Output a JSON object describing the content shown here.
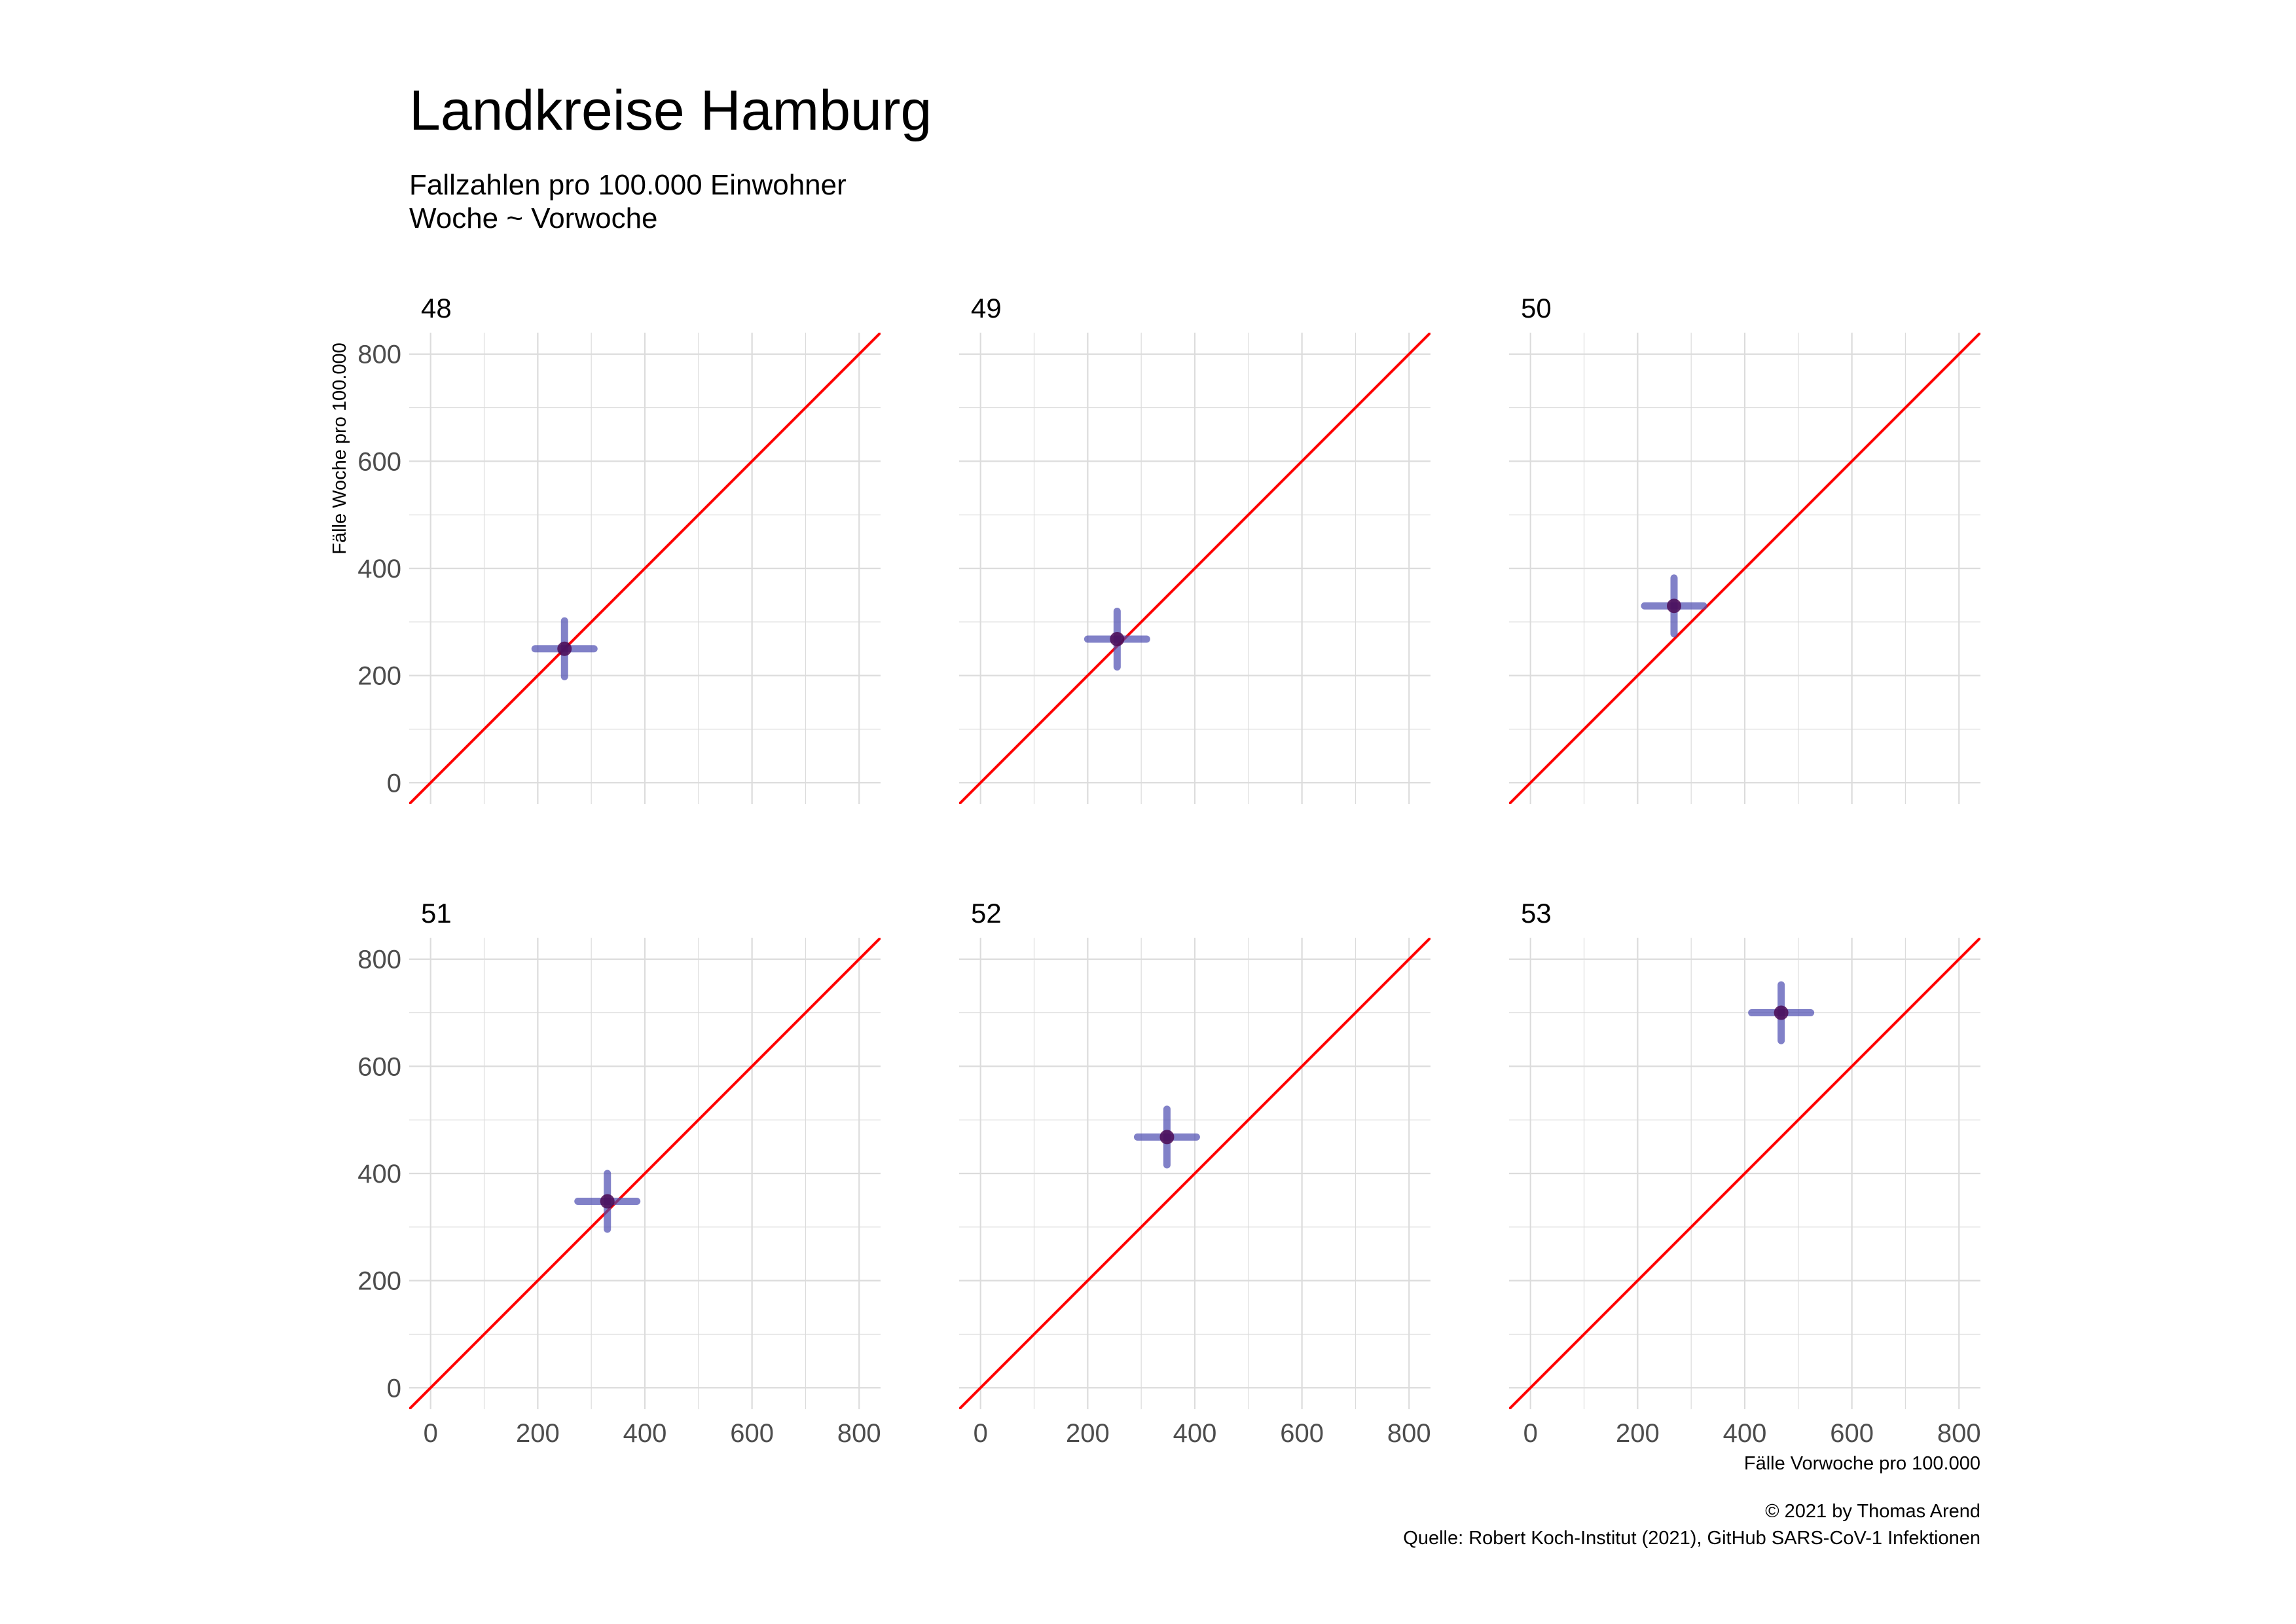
{
  "colors": {
    "background": "#ffffff",
    "grid": "#dcdcdc",
    "diagonal": "#ff0000",
    "crosshair": "#4b4bb0",
    "point": "#4b0a55",
    "text": "#000000",
    "tick_text": "#4d4d4d"
  },
  "chart_data": {
    "type": "scatter",
    "title": "Landkreise Hamburg",
    "subtitle": [
      "Fallzahlen pro 100.000 Einwohner",
      "Woche ~ Vorwoche"
    ],
    "xlabel": "Fälle Vorwoche pro 100.000",
    "ylabel": "Fälle Woche pro 100.000",
    "caption": [
      "© 2021 by Thomas Arend",
      "Quelle: Robert Koch-Institut (2021), GitHub SARS-CoV-1 Infektionen"
    ],
    "xlim": [
      -40,
      840
    ],
    "ylim": [
      -40,
      840
    ],
    "xticks": [
      0,
      200,
      400,
      600,
      800
    ],
    "yticks": [
      0,
      200,
      400,
      600,
      800
    ],
    "grid": true,
    "reference_line": "y = x",
    "facets": [
      {
        "label": "48",
        "x": 250,
        "y": 250,
        "x_error": 55,
        "y_error": 52
      },
      {
        "label": "49",
        "x": 255,
        "y": 268,
        "x_error": 55,
        "y_error": 52
      },
      {
        "label": "50",
        "x": 268,
        "y": 330,
        "x_error": 55,
        "y_error": 52
      },
      {
        "label": "51",
        "x": 330,
        "y": 348,
        "x_error": 55,
        "y_error": 52
      },
      {
        "label": "52",
        "x": 348,
        "y": 468,
        "x_error": 55,
        "y_error": 52
      },
      {
        "label": "53",
        "x": 468,
        "y": 700,
        "x_error": 55,
        "y_error": 52
      }
    ]
  }
}
